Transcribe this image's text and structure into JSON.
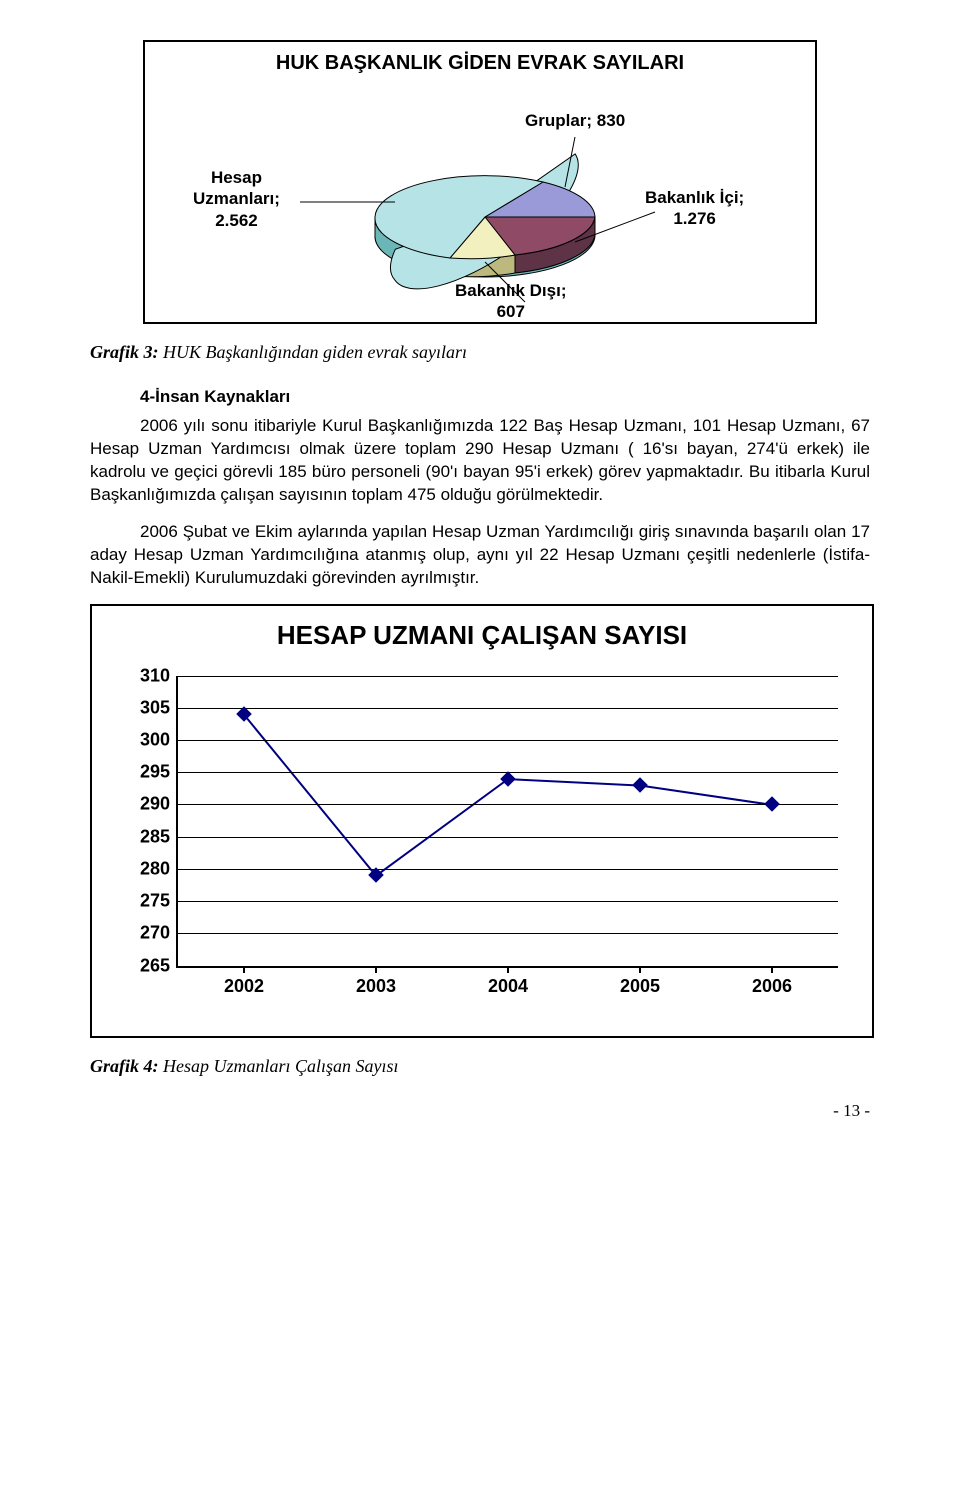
{
  "pie_chart": {
    "type": "pie-3d",
    "title": "HUK BAŞKANLIK GİDEN EVRAK SAYILARI",
    "title_fontsize": 20,
    "background_color": "#ffffff",
    "border_color": "#000000",
    "labels": {
      "gruplar": "Gruplar; 830",
      "hesap_uzmanlari": "Hesap\nUzmanları;\n2.562",
      "bakanlik_ici": "Bakanlık İçi;\n1.276",
      "bakanlik_disi": "Bakanlık Dışı;\n607"
    },
    "slices": [
      {
        "name": "Hesap Uzmanları",
        "value": 2562,
        "color": "#b6e4e6"
      },
      {
        "name": "Bakanlık İçi",
        "value": 1276,
        "color": "#8f4a66"
      },
      {
        "name": "Gruplar",
        "value": 830,
        "color": "#9a9ad9"
      },
      {
        "name": "Bakanlık Dışı",
        "value": 607,
        "color": "#f3f0c0"
      }
    ],
    "label_fontsize": 17,
    "label_fontweight": "bold"
  },
  "pie_caption_bold": "Grafik 3:",
  "pie_caption_rest": " HUK Başkanlığından giden evrak sayıları",
  "section_heading": "4-İnsan Kaynakları",
  "para1": "2006 yılı sonu itibariyle Kurul Başkanlığımızda 122 Baş Hesap Uzmanı, 101 Hesap Uzmanı, 67 Hesap Uzman Yardımcısı olmak üzere toplam 290 Hesap Uzmanı ( 16'sı bayan, 274'ü erkek) ile kadrolu ve geçici görevli 185 büro personeli (90'ı bayan 95'i erkek) görev yapmaktadır. Bu itibarla Kurul Başkanlığımızda çalışan sayısının toplam 475 olduğu görülmektedir.",
  "para2": "2006 Şubat ve Ekim aylarında yapılan Hesap Uzman Yardımcılığı giriş sınavında başarılı olan 17 aday Hesap Uzman Yardımcılığına atanmış olup, aynı yıl 22 Hesap Uzmanı çeşitli nedenlerle (İstifa-Nakil-Emekli) Kurulumuzdaki görevinden ayrılmıştır.",
  "line_chart": {
    "type": "line",
    "title": "HESAP UZMANI ÇALIŞAN SAYISI",
    "title_fontsize": 26,
    "background_color": "#ffffff",
    "border_color": "#000000",
    "grid_color": "#000000",
    "line_color": "#000080",
    "marker_color": "#000080",
    "marker_style": "diamond",
    "marker_size": 11,
    "line_width": 2,
    "ylim": [
      265,
      310
    ],
    "ytick_step": 5,
    "yticks": [
      265,
      270,
      275,
      280,
      285,
      290,
      295,
      300,
      305,
      310
    ],
    "x_categories": [
      "2002",
      "2003",
      "2004",
      "2005",
      "2006"
    ],
    "values": [
      304,
      279,
      294,
      293,
      290
    ],
    "label_fontsize": 18
  },
  "line_caption_bold": "Grafik 4:",
  "line_caption_rest": " Hesap Uzmanları Çalışan Sayısı",
  "page_number": "- 13 -"
}
